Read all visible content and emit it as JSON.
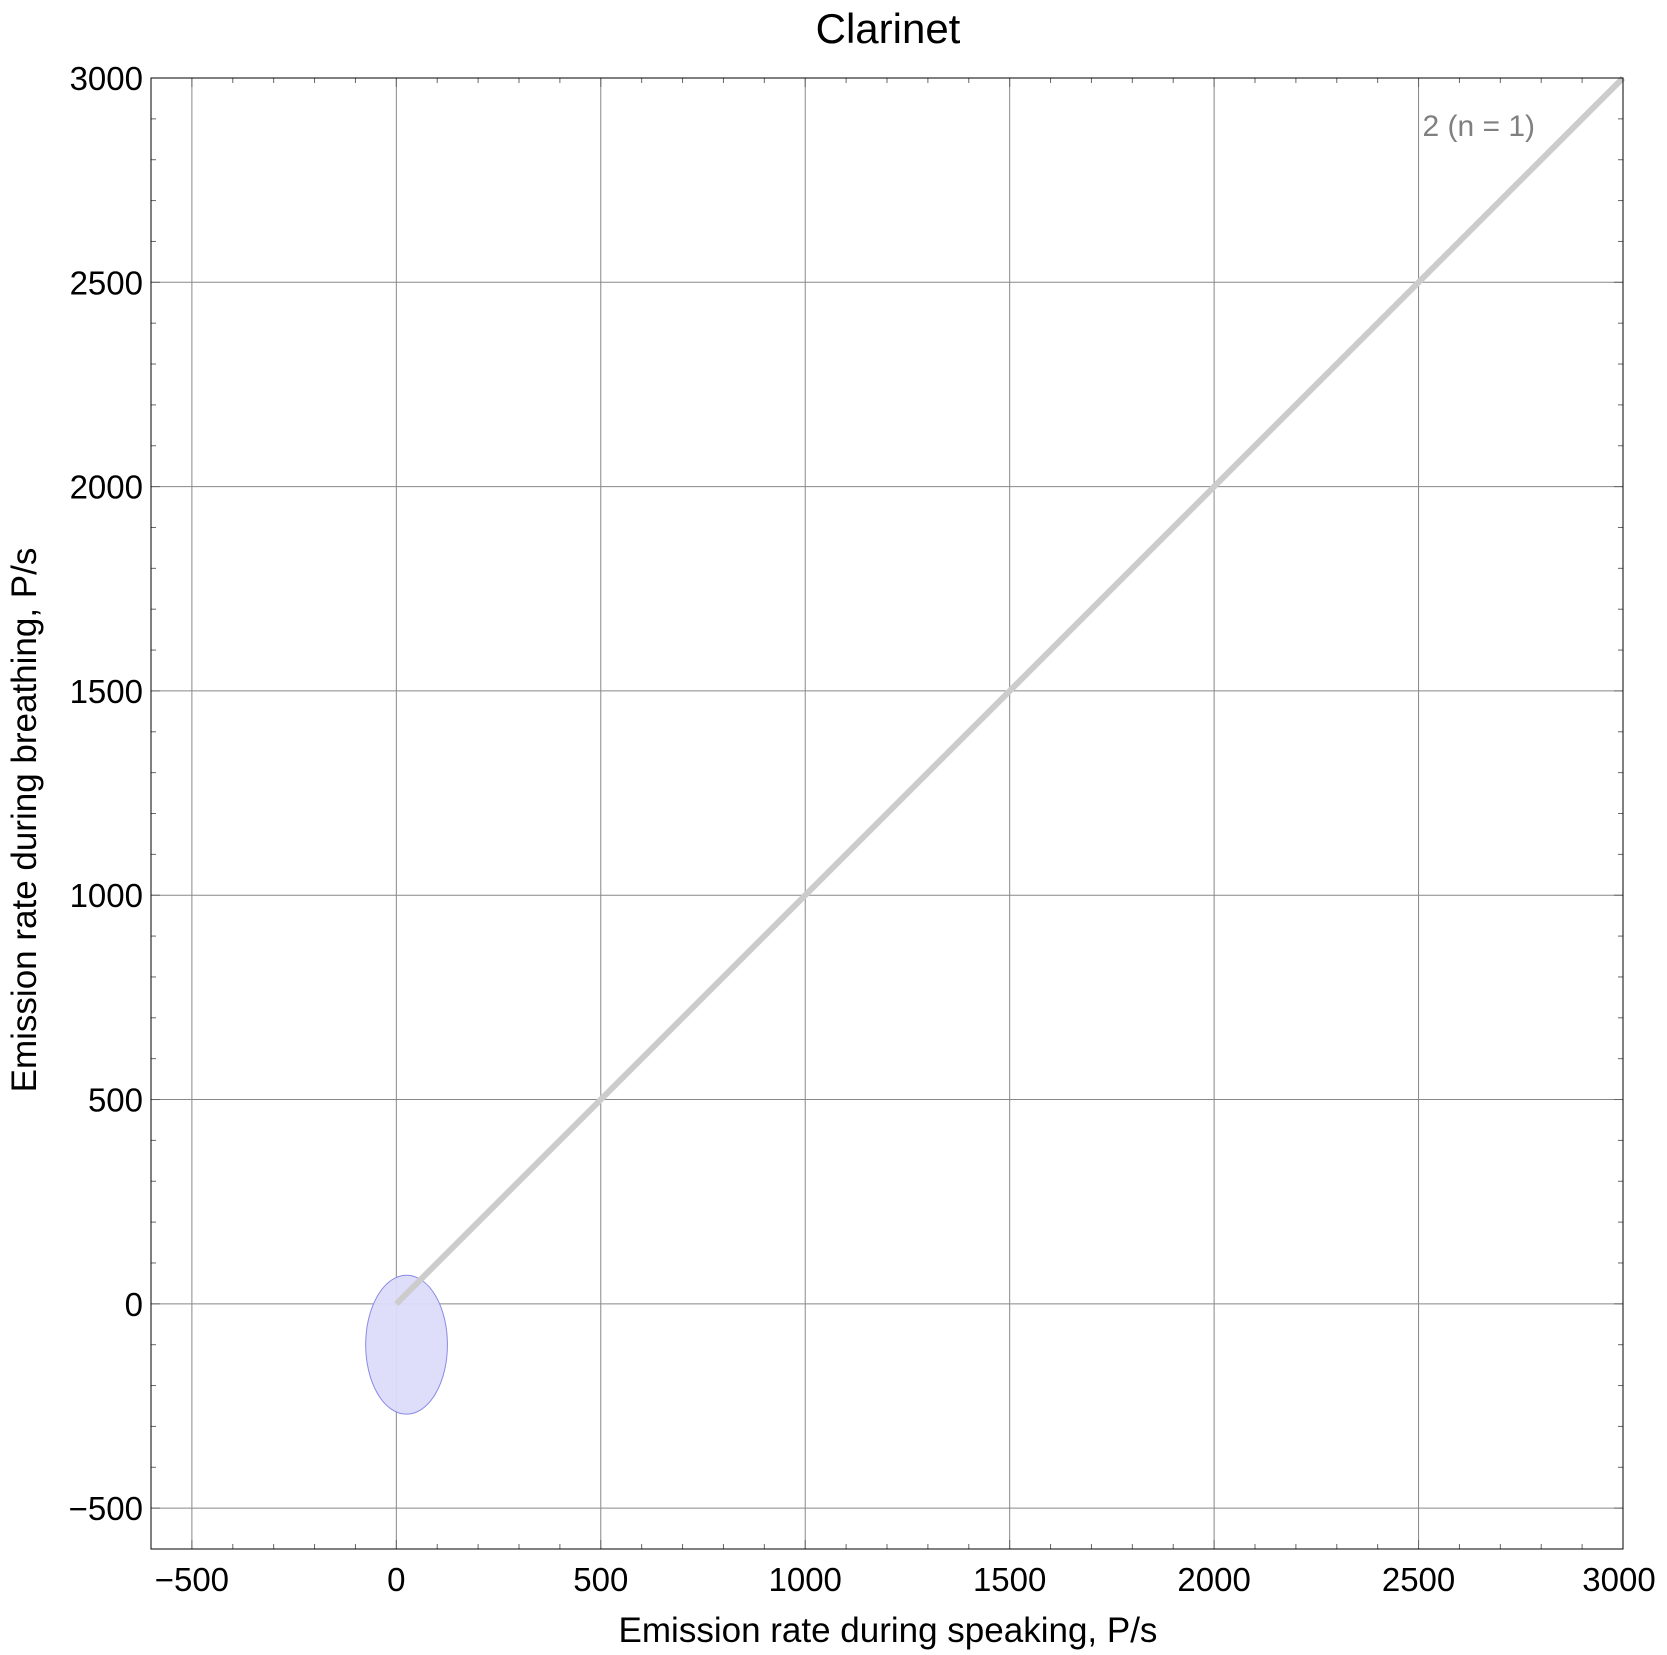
{
  "chart_data": {
    "type": "scatter",
    "title": "Clarinet",
    "xlabel": "Emission rate during speaking,  P/s",
    "ylabel": "Emission rate during breathing,  P/s",
    "xlim": [
      -600,
      3000
    ],
    "ylim": [
      -600,
      3000
    ],
    "x_ticks": [
      -500,
      0,
      500,
      1000,
      1500,
      2000,
      2500,
      3000
    ],
    "y_ticks": [
      -500,
      0,
      500,
      1000,
      1500,
      2000,
      2500,
      3000
    ],
    "x_tick_labels": [
      "−500",
      "0",
      "500",
      "1000",
      "1500",
      "2000",
      "2500",
      "3000"
    ],
    "y_tick_labels": [
      "−500",
      "0",
      "500",
      "1000",
      "1500",
      "2000",
      "2500",
      "3000"
    ],
    "grid": true,
    "reference_line": {
      "from": [
        0,
        0
      ],
      "to": [
        3000,
        3000
      ],
      "color": "#cccccc"
    },
    "annotation": "2  (n = 1)",
    "ellipses": [
      {
        "center": [
          25,
          -100
        ],
        "radius_x": 100,
        "radius_y": 170,
        "fill": "#dcdcfa",
        "stroke": "#8a8ae6"
      }
    ]
  }
}
